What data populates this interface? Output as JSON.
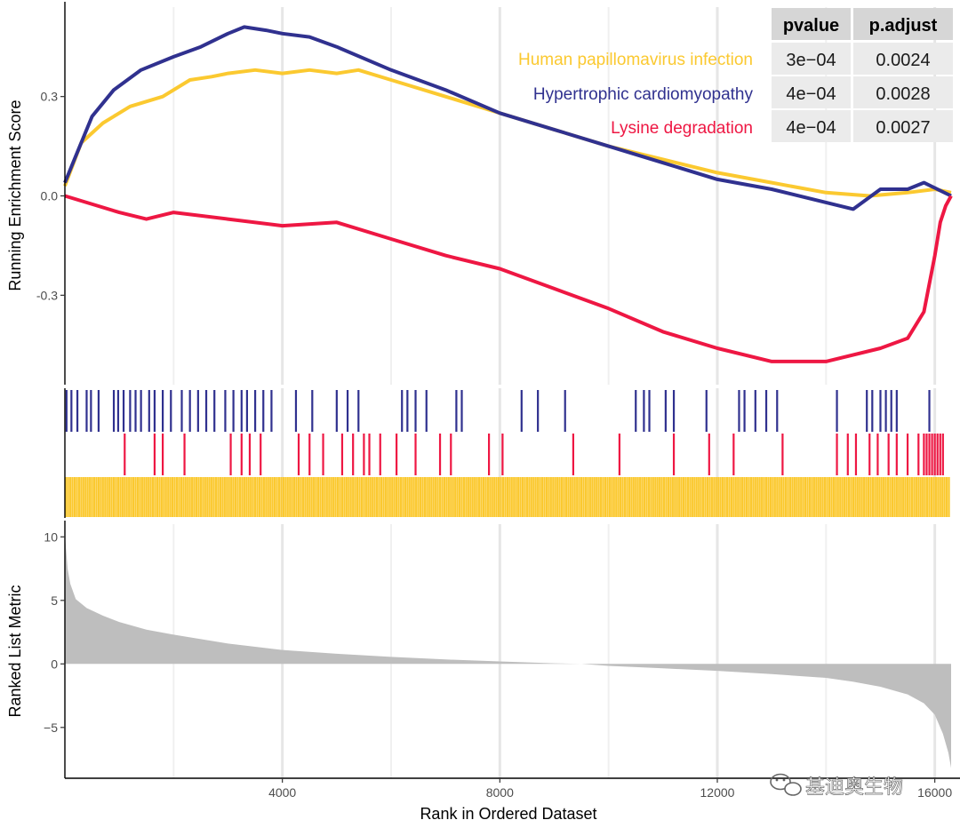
{
  "chart_data": {
    "type": "line",
    "title": "",
    "xlabel": "Rank in Ordered Dataset",
    "xlim": [
      0,
      16300
    ],
    "x_ticks": [
      4000,
      8000,
      12000,
      16000
    ],
    "x_tick_labels": [
      "4000",
      "8000",
      "12000",
      "16000"
    ],
    "top_panel": {
      "ylabel": "Running Enrichment Score",
      "ylim": [
        -0.57,
        0.57
      ],
      "y_ticks": [
        -0.3,
        0.0,
        0.3
      ],
      "y_tick_labels": [
        "-0.3",
        "0.0",
        "0.3"
      ],
      "series": [
        {
          "name": "Human papillomavirus infection",
          "color": "#FBC930",
          "x": [
            0,
            300,
            700,
            1200,
            1800,
            2300,
            2700,
            3000,
            3500,
            4000,
            4500,
            5000,
            5400,
            6000,
            7000,
            8000,
            9000,
            10000,
            11000,
            12000,
            13000,
            14000,
            14800,
            15500,
            16000,
            16300
          ],
          "y": [
            0.03,
            0.16,
            0.22,
            0.27,
            0.3,
            0.35,
            0.36,
            0.37,
            0.38,
            0.37,
            0.38,
            0.37,
            0.38,
            0.35,
            0.3,
            0.25,
            0.2,
            0.15,
            0.11,
            0.07,
            0.04,
            0.01,
            0.0,
            0.01,
            0.02,
            0.01
          ]
        },
        {
          "name": "Hypertrophic cardiomyopathy",
          "color": "#30318F",
          "x": [
            0,
            200,
            500,
            900,
            1400,
            2000,
            2500,
            3000,
            3300,
            3700,
            4000,
            4500,
            5000,
            6000,
            7000,
            8000,
            9000,
            10000,
            11000,
            12000,
            13000,
            14500,
            15000,
            15500,
            15800,
            16300
          ],
          "y": [
            0.04,
            0.12,
            0.24,
            0.32,
            0.38,
            0.42,
            0.45,
            0.49,
            0.51,
            0.5,
            0.49,
            0.48,
            0.45,
            0.38,
            0.32,
            0.25,
            0.2,
            0.15,
            0.1,
            0.05,
            0.02,
            -0.04,
            0.02,
            0.02,
            0.04,
            0.0
          ]
        },
        {
          "name": "Lysine degradation",
          "color": "#EE1743",
          "x": [
            0,
            1000,
            1500,
            2000,
            3000,
            4000,
            5000,
            6000,
            7000,
            8000,
            9000,
            10000,
            11000,
            12000,
            13000,
            14000,
            15000,
            15500,
            15800,
            16000,
            16100,
            16200,
            16300
          ],
          "y": [
            0.0,
            -0.05,
            -0.07,
            -0.05,
            -0.07,
            -0.09,
            -0.08,
            -0.13,
            -0.18,
            -0.22,
            -0.28,
            -0.34,
            -0.41,
            -0.46,
            -0.5,
            -0.5,
            -0.46,
            -0.43,
            -0.35,
            -0.18,
            -0.08,
            -0.03,
            0.0
          ]
        }
      ],
      "legend": {
        "position": "top-right",
        "entries": [
          "Human papillomavirus infection",
          "Hypertrophic cardiomyopathy",
          "Lysine degradation"
        ]
      },
      "table": {
        "columns": [
          "pvalue",
          "p.adjust"
        ],
        "rows": [
          [
            "3e−04",
            "0.0024"
          ],
          [
            "4e−04",
            "0.0028"
          ],
          [
            "4e−04",
            "0.0027"
          ]
        ]
      }
    },
    "hits_panel": {
      "rows": [
        {
          "name": "Hypertrophic cardiomyopathy",
          "color": "#30318F",
          "positions": [
            30,
            120,
            230,
            400,
            480,
            620,
            900,
            980,
            1080,
            1200,
            1300,
            1400,
            1550,
            1650,
            1800,
            1950,
            2150,
            2300,
            2450,
            2600,
            2750,
            2950,
            3100,
            3250,
            3350,
            3500,
            3650,
            3800,
            4250,
            4550,
            5000,
            5200,
            5400,
            6200,
            6300,
            6450,
            6650,
            7200,
            7300,
            8400,
            8700,
            9200,
            10500,
            10650,
            10750,
            11050,
            11200,
            11800,
            12400,
            12500,
            12700,
            12900,
            13100,
            14200,
            14750,
            14850,
            15000,
            15100,
            15200,
            15300,
            15900
          ]
        },
        {
          "name": "Lysine degradation",
          "color": "#EE1743",
          "positions": [
            1100,
            1650,
            1800,
            2200,
            3050,
            3250,
            3400,
            3600,
            4300,
            4500,
            4750,
            5100,
            5300,
            5500,
            5600,
            5800,
            6100,
            6450,
            6900,
            7100,
            7800,
            8050,
            9350,
            10200,
            11200,
            11850,
            12300,
            13200,
            14200,
            14400,
            14550,
            14800,
            14950,
            15150,
            15300,
            15500,
            15700,
            15800,
            15850,
            15900,
            15950,
            16000,
            16050,
            16100,
            16150
          ]
        },
        {
          "name": "Human papillomavirus infection",
          "color": "#FBC930",
          "positions": [
            20,
            60,
            100,
            140,
            180,
            220,
            260,
            300,
            340,
            380,
            420,
            460,
            500,
            540,
            580,
            620,
            660,
            700,
            740,
            780,
            820,
            860,
            900,
            940,
            980,
            1020,
            1060,
            1100,
            1140,
            1180,
            1220,
            1260,
            1300,
            1340,
            1380,
            1420,
            1460,
            1500,
            1540,
            1580,
            1620,
            1660,
            1700,
            1740,
            1780,
            1820,
            1860,
            1900,
            1940,
            1980,
            2020,
            2060,
            2100,
            2140,
            2180,
            2220,
            2260,
            2300,
            2340,
            2380,
            2420,
            2460,
            2500,
            2540,
            2580,
            2620,
            2660,
            2700,
            2740,
            2780,
            2820,
            2860,
            2900,
            2940,
            2980,
            3020,
            3060,
            3100,
            3140,
            3180,
            3220,
            3260,
            3300,
            3340,
            3380,
            3420,
            3460,
            3500,
            3540,
            3580,
            3620,
            3660,
            3700,
            3740,
            3780,
            3820,
            3860,
            3900,
            3940,
            3980,
            4020,
            4060,
            4100,
            4140,
            4180,
            4220,
            4260,
            4300,
            4340,
            4380,
            4420,
            4460,
            4500,
            4540,
            4580,
            4620,
            4660,
            4700,
            4740,
            4780,
            4820,
            4860,
            4900,
            4940,
            4980,
            5020,
            5060,
            5100,
            5140,
            5180,
            5220,
            5260,
            5300,
            5340,
            5380,
            5420,
            5460,
            5500,
            5540,
            5580,
            5620,
            5660,
            5700,
            5740,
            5780,
            5820,
            5860,
            5900,
            5940,
            5980,
            6020,
            6060,
            6100,
            6140,
            6180,
            6220,
            6260,
            6300,
            6340,
            6380,
            6420,
            6460,
            6500,
            6540,
            6580,
            6620,
            6660,
            6700,
            6740,
            6780,
            6820,
            6860,
            6900,
            6940,
            6980,
            7020,
            7060,
            7100,
            7140,
            7180,
            7220,
            7260,
            7300,
            7340,
            7380,
            7420,
            7460,
            7500,
            7540,
            7580,
            7620,
            7660,
            7700,
            7740,
            7780,
            7820,
            7860,
            7900,
            7940,
            7980,
            8020,
            8060,
            8100,
            8140,
            8180,
            8220,
            8260,
            8300,
            8340,
            8380,
            8420,
            8460,
            8500,
            8540,
            8580,
            8620,
            8660,
            8700,
            8740,
            8780,
            8820,
            8860,
            8900,
            8940,
            8980,
            9020,
            9060,
            9100,
            9140,
            9180,
            9220,
            9260,
            9300,
            9340,
            9380,
            9420,
            9460,
            9500,
            9540,
            9580,
            9620,
            9660,
            9700,
            9740,
            9780,
            9820,
            9860,
            9900,
            9940,
            9980,
            10020,
            10060,
            10100,
            10140,
            10180,
            10220,
            10260,
            10300,
            10340,
            10380,
            10420,
            10460,
            10500,
            10540,
            10580,
            10620,
            10660,
            10700,
            10740,
            10780,
            10820,
            10860,
            10900,
            10940,
            10980,
            11020,
            11060,
            11100,
            11140,
            11180,
            11220,
            11260,
            11300,
            11340,
            11380,
            11420,
            11460,
            11500,
            11540,
            11580,
            11620,
            11660,
            11700,
            11740,
            11780,
            11820,
            11860,
            11900,
            11940,
            11980,
            12020,
            12060,
            12100,
            12140,
            12180,
            12220,
            12260,
            12300,
            12340,
            12380,
            12420,
            12460,
            12500,
            12540,
            12580,
            12620,
            12660,
            12700,
            12740,
            12780,
            12820,
            12860,
            12900,
            12940,
            12980,
            13020,
            13060,
            13100,
            13140,
            13180,
            13220,
            13260,
            13300,
            13340,
            13380,
            13420,
            13460,
            13500,
            13540,
            13580,
            13620,
            13660,
            13700,
            13740,
            13780,
            13820,
            13860,
            13900,
            13940,
            13980,
            14020,
            14060,
            14100,
            14140,
            14180,
            14220,
            14260,
            14300,
            14340,
            14380,
            14420,
            14460,
            14500,
            14540,
            14580,
            14620,
            14660,
            14700,
            14740,
            14780,
            14820,
            14860,
            14900,
            14940,
            14980,
            15020,
            15060,
            15100,
            15140,
            15180,
            15220,
            15260,
            15300,
            15340,
            15380,
            15420,
            15460,
            15500,
            15540,
            15580,
            15620,
            15660,
            15700,
            15740,
            15780,
            15820,
            15860,
            15900,
            15940,
            15980,
            16020,
            16060,
            16100,
            16140,
            16180,
            16220,
            16260
          ]
        }
      ]
    },
    "bottom_panel": {
      "type": "area",
      "ylabel": "Ranked List Metric",
      "ylim": [
        -9,
        11
      ],
      "y_ticks": [
        -5,
        0,
        5,
        10
      ],
      "y_tick_labels": [
        "−5",
        "0",
        "5",
        "10"
      ],
      "color": "#BEBEBE",
      "x": [
        0,
        50,
        100,
        200,
        400,
        700,
        1000,
        1500,
        2000,
        3000,
        4000,
        5000,
        6000,
        7000,
        8000,
        9000,
        9500,
        10000,
        11000,
        12000,
        13000,
        14000,
        14500,
        15000,
        15500,
        15800,
        16000,
        16150,
        16250,
        16300
      ],
      "y": [
        10.2,
        7.5,
        6.3,
        5.1,
        4.4,
        3.8,
        3.3,
        2.7,
        2.3,
        1.6,
        1.1,
        0.8,
        0.55,
        0.35,
        0.2,
        0.05,
        0.0,
        -0.15,
        -0.35,
        -0.55,
        -0.8,
        -1.1,
        -1.4,
        -1.8,
        -2.4,
        -3.1,
        -4.0,
        -5.5,
        -7.0,
        -8.2
      ]
    }
  },
  "watermark": {
    "text": "基迪奥生物",
    "icon": "wechat-icon"
  }
}
